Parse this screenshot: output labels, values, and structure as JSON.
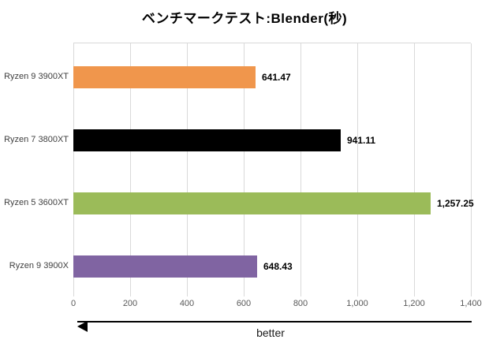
{
  "chart_data": {
    "type": "bar",
    "orientation": "horizontal",
    "title": "ベンチマークテスト:Blender(秒)",
    "categories": [
      "Ryzen 9 3900XT",
      "Ryzen 7 3800XT",
      "Ryzen 5 3600XT",
      "Ryzen 9 3900X"
    ],
    "values": [
      641.47,
      941.11,
      1257.25,
      648.43
    ],
    "value_labels": [
      "641.47",
      "941.11",
      "1,257.25",
      "648.43"
    ],
    "bar_colors": [
      "#F0964C",
      "#000000",
      "#9BBB59",
      "#8064A2"
    ],
    "xlim": [
      0,
      1400
    ],
    "xticks": [
      0,
      200,
      400,
      600,
      800,
      1000,
      1200,
      1400
    ],
    "xtick_labels": [
      "0",
      "200",
      "400",
      "600",
      "800",
      "1,000",
      "1,200",
      "1,400"
    ],
    "grid": true,
    "legend": false,
    "better_label": "better",
    "better_direction": "left"
  },
  "colors": {
    "background": "#FFFFFF",
    "gridline": "#D9D9D9",
    "tick_label": "#595959",
    "category_label": "#3F3F3F",
    "value_label": "#000000",
    "title": "#000000",
    "arrow": "#000000",
    "better_label": "#1A1A1A"
  }
}
